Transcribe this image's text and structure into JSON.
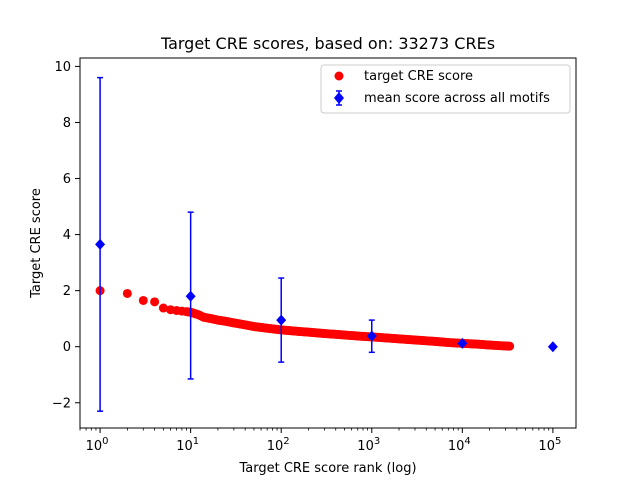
{
  "chart_data": {
    "type": "scatter",
    "title": "Target CRE scores, based on: 33273 CREs",
    "xlabel": "Target CRE score rank (log)",
    "ylabel": "Target CRE score",
    "xscale": "log",
    "xlim": [
      0.6,
      180000
    ],
    "ylim": [
      -2.9,
      10.3
    ],
    "xticks": [
      {
        "value": 1,
        "base": "10",
        "exp": "0"
      },
      {
        "value": 10,
        "base": "10",
        "exp": "1"
      },
      {
        "value": 100,
        "base": "10",
        "exp": "2"
      },
      {
        "value": 1000,
        "base": "10",
        "exp": "3"
      },
      {
        "value": 10000,
        "base": "10",
        "exp": "4"
      },
      {
        "value": 100000,
        "base": "10",
        "exp": "5"
      }
    ],
    "yticks": [
      {
        "value": -2,
        "label": "−2"
      },
      {
        "value": 0,
        "label": "0"
      },
      {
        "value": 2,
        "label": "2"
      },
      {
        "value": 4,
        "label": "4"
      },
      {
        "value": 6,
        "label": "6"
      },
      {
        "value": 8,
        "label": "8"
      },
      {
        "value": 10,
        "label": "10"
      }
    ],
    "legend_position": "top-right",
    "series": [
      {
        "name": "target CRE score",
        "marker": "circle",
        "color": "#ff0000",
        "points": [
          [
            1,
            2.0
          ],
          [
            2,
            1.9
          ],
          [
            3,
            1.65
          ],
          [
            4,
            1.6
          ],
          [
            5,
            1.38
          ],
          [
            6,
            1.32
          ],
          [
            7,
            1.29
          ],
          [
            8,
            1.27
          ],
          [
            9,
            1.25
          ],
          [
            10,
            1.23
          ],
          [
            12,
            1.15
          ],
          [
            14,
            1.05
          ],
          [
            17,
            1.0
          ],
          [
            20,
            0.95
          ],
          [
            25,
            0.9
          ],
          [
            30,
            0.85
          ],
          [
            40,
            0.78
          ],
          [
            50,
            0.72
          ],
          [
            70,
            0.66
          ],
          [
            100,
            0.6
          ],
          [
            150,
            0.55
          ],
          [
            200,
            0.52
          ],
          [
            300,
            0.47
          ],
          [
            500,
            0.42
          ],
          [
            700,
            0.38
          ],
          [
            1000,
            0.35
          ],
          [
            1500,
            0.31
          ],
          [
            2000,
            0.28
          ],
          [
            3000,
            0.24
          ],
          [
            5000,
            0.19
          ],
          [
            7000,
            0.15
          ],
          [
            10000,
            0.12
          ],
          [
            15000,
            0.09
          ],
          [
            20000,
            0.06
          ],
          [
            25000,
            0.04
          ],
          [
            33273,
            0.02
          ]
        ]
      },
      {
        "name": "mean score across all motifs",
        "marker": "diamond",
        "color": "#0000ff",
        "points": [
          {
            "x": 1,
            "y": 3.65,
            "ylow": -2.3,
            "yhigh": 9.6
          },
          {
            "x": 10,
            "y": 1.8,
            "ylow": -1.15,
            "yhigh": 4.8
          },
          {
            "x": 100,
            "y": 0.95,
            "ylow": -0.55,
            "yhigh": 2.45
          },
          {
            "x": 1000,
            "y": 0.38,
            "ylow": -0.2,
            "yhigh": 0.95
          },
          {
            "x": 10000,
            "y": 0.12,
            "ylow": 0.12,
            "yhigh": 0.12
          },
          {
            "x": 100000,
            "y": 0.0,
            "ylow": 0.0,
            "yhigh": 0.0
          }
        ]
      }
    ]
  }
}
